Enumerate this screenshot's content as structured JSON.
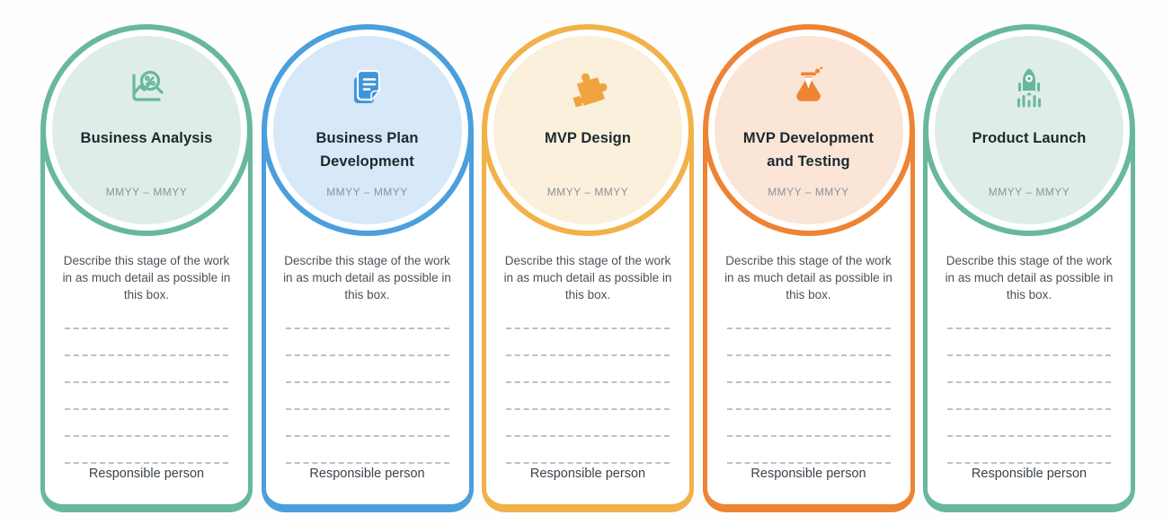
{
  "page": {
    "background": "#fefefe"
  },
  "dashed_lines_per_card": 6,
  "text_colors": {
    "title": "#1c2930",
    "date": "#8d939b",
    "description": "#4a525a",
    "footer": "#3a434b",
    "dashed_line": "#bcc1c8"
  },
  "cards": [
    {
      "id": "business-analysis",
      "icon": "chart-magnifier-icon",
      "title": "Business Analysis",
      "date_range": "MMYY – MMYY",
      "description": "Describe this stage of the work in as much detail as possible in this box.",
      "footer": "Responsible person",
      "accent_color": "#68b89d",
      "tint_color": "#dfede7",
      "icon_color": "#68b89d"
    },
    {
      "id": "business-plan-development",
      "icon": "documents-icon",
      "title": "Business Plan Development",
      "date_range": "MMYY – MMYY",
      "description": "Describe this stage of the work in as much detail as possible in this box.",
      "footer": "Responsible person",
      "accent_color": "#4b9fdd",
      "tint_color": "#d7e8f8",
      "icon_color": "#3e96d8"
    },
    {
      "id": "mvp-design",
      "icon": "puzzle-icon",
      "title": "MVP Design",
      "date_range": "MMYY – MMYY",
      "description": "Describe this stage of the work in as much detail as possible in this box.",
      "footer": "Responsible person",
      "accent_color": "#f2b149",
      "tint_color": "#faf0db",
      "icon_color": "#efa440"
    },
    {
      "id": "mvp-development-and-testing",
      "icon": "flask-icon",
      "title": "MVP Development and Testing",
      "date_range": "MMYY – MMYY",
      "description": "Describe this stage of the work in as much detail as possible in this box.",
      "footer": "Responsible person",
      "accent_color": "#ee8334",
      "tint_color": "#fbe5d6",
      "icon_color": "#ee8334"
    },
    {
      "id": "product-launch",
      "icon": "rocket-launch-icon",
      "title": "Product Launch",
      "date_range": "MMYY – MMYY",
      "description": "Describe this stage of the work in as much detail as possible in this box.",
      "footer": "Responsible person",
      "accent_color": "#68b89d",
      "tint_color": "#dfede7",
      "icon_color": "#68b89d"
    }
  ]
}
